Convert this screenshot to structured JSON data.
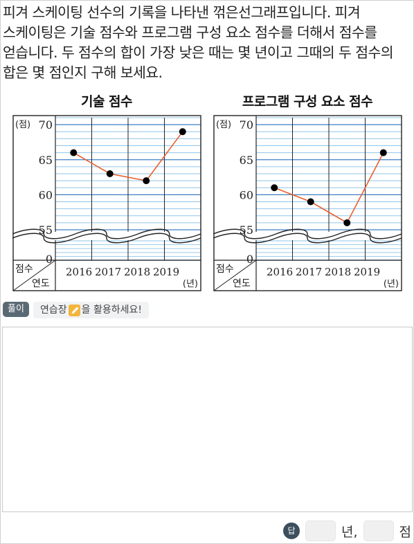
{
  "question": "피겨 스케이팅 선수의 기록을 나타낸 꺾은선그래프입니다. 피겨 스케이팅은 기술 점수와 프로그램 구성 요소 점수를 더해서 점수를 얻습니다. 두 점수의 합이 가장 낮은 때는 몇 년이고 그때의 두 점수의 합은 몇 점인지 구해 보세요.",
  "chart_data": [
    {
      "type": "line",
      "title": "기술 점수",
      "x": [
        "2016",
        "2017",
        "2018",
        "2019"
      ],
      "values": [
        66,
        63,
        62,
        69
      ],
      "ylabel": "(점)",
      "xlabel": "(년)",
      "yticks": [
        0,
        55,
        60,
        65,
        70
      ],
      "ylim": [
        55,
        71
      ],
      "axis_break": true,
      "corner_top": "점수",
      "corner_bottom": "연도",
      "line_color": "#e8602c"
    },
    {
      "type": "line",
      "title": "프로그램 구성 요소 점수",
      "x": [
        "2016",
        "2017",
        "2018",
        "2019"
      ],
      "values": [
        61,
        59,
        56,
        66
      ],
      "ylabel": "(점)",
      "xlabel": "(년)",
      "yticks": [
        0,
        55,
        60,
        65,
        70
      ],
      "ylim": [
        55,
        71
      ],
      "axis_break": true,
      "corner_top": "점수",
      "corner_bottom": "연도",
      "line_color": "#e8602c"
    }
  ],
  "solution": {
    "label": "풀이",
    "hint_before": "연습장",
    "hint_after": "을 활용하세요!"
  },
  "answer": {
    "badge": "답",
    "unit_year": "년,",
    "unit_score": "점"
  }
}
